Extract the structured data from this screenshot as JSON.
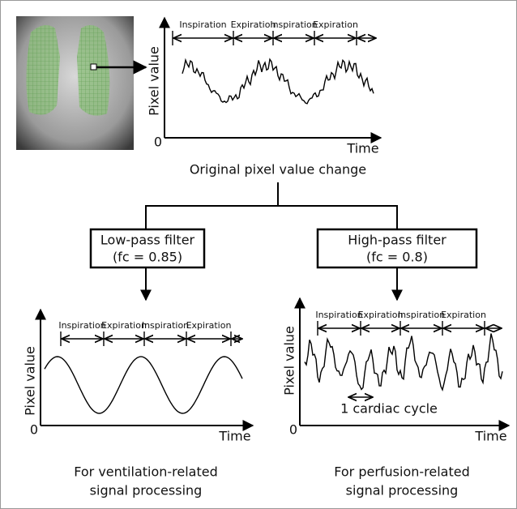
{
  "top_plot": {
    "phases": [
      "Inspiration",
      "Expiration",
      "Inspiration",
      "Expiration"
    ],
    "y_label": "Pixel value",
    "x_label": "Time",
    "origin": "0",
    "caption": "Original pixel value change"
  },
  "filters": [
    {
      "name": "Low-pass filter",
      "param": "(fc = 0.85)"
    },
    {
      "name": "High-pass filter",
      "param": "(fc = 0.8)"
    }
  ],
  "bottom_plots": [
    {
      "phases": [
        "Inspiration",
        "Expiration",
        "Inspiration",
        "Expiration"
      ],
      "y_label": "Pixel value",
      "x_label": "Time",
      "origin": "0",
      "caption_lines": [
        "For ventilation-related",
        "signal processing"
      ]
    },
    {
      "phases": [
        "Inspiration",
        "Expiration",
        "Inspiration",
        "Expiration"
      ],
      "y_label": "Pixel value",
      "x_label": "Time",
      "origin": "0",
      "annotation": "1 cardiac cycle",
      "caption_lines": [
        "For perfusion-related",
        "signal processing"
      ]
    }
  ]
}
